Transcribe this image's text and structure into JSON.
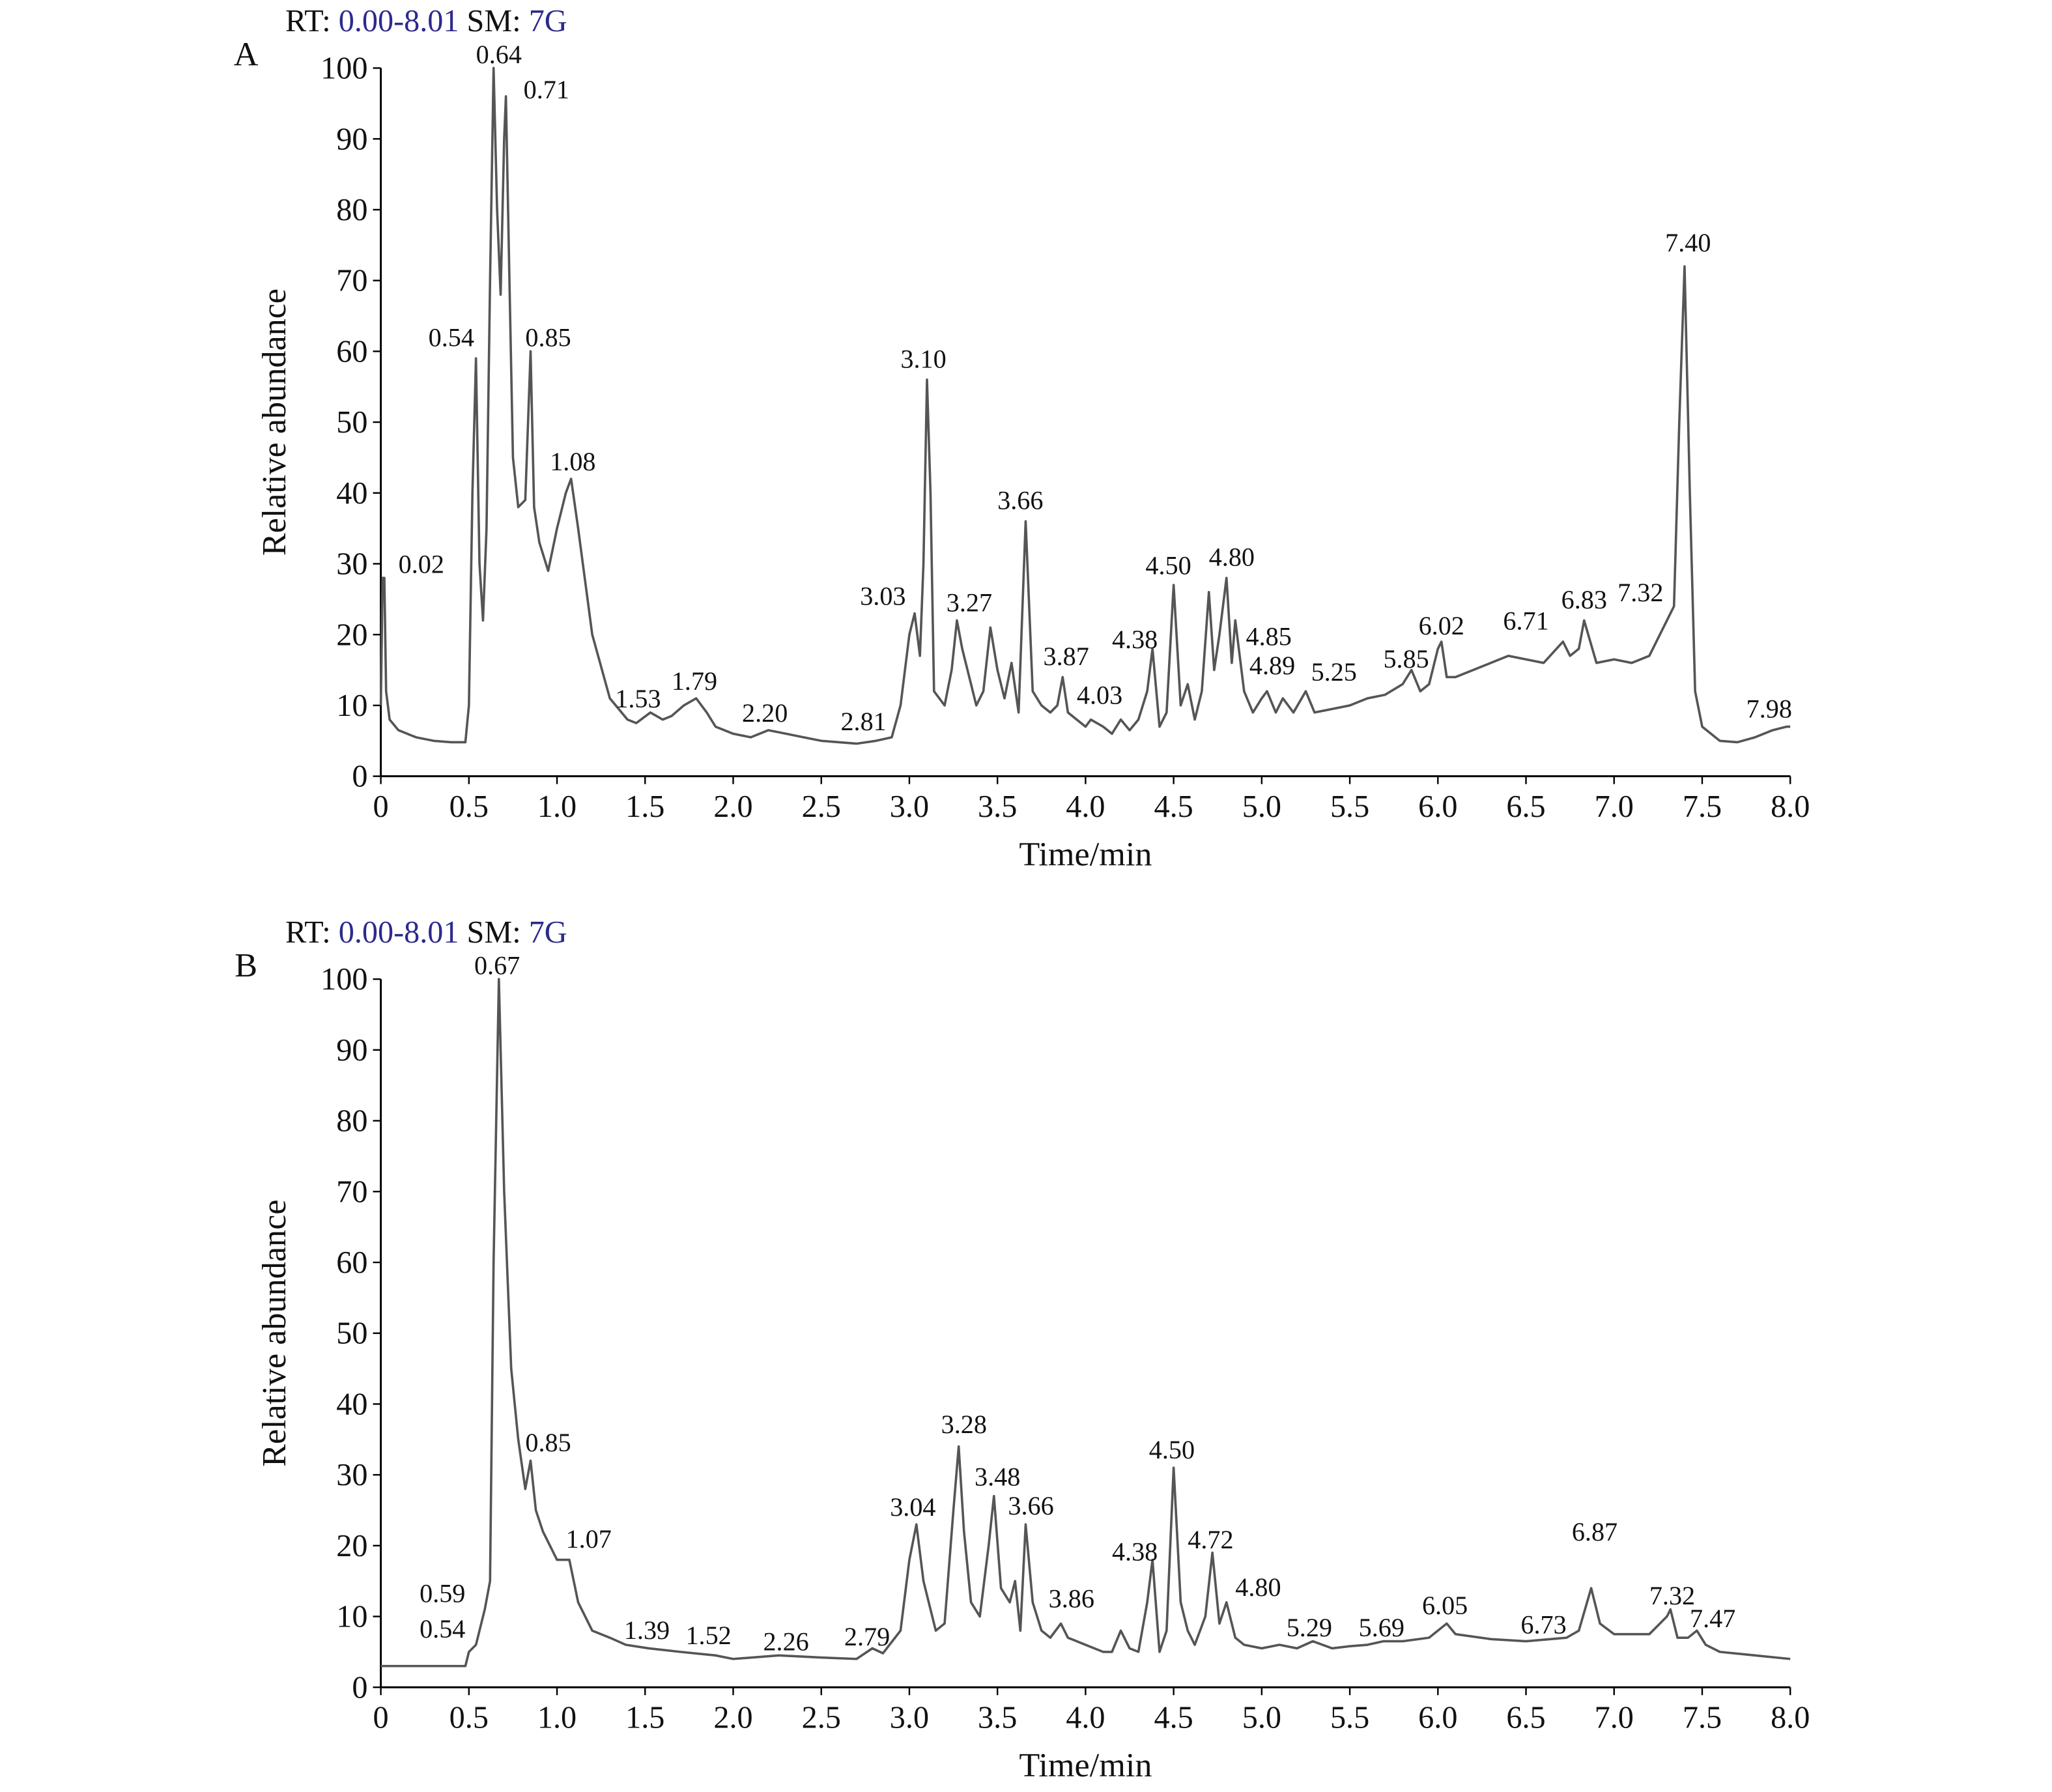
{
  "chart_data": [
    {
      "type": "line",
      "panel": "A",
      "header": {
        "rt_label": "RT:",
        "rt_range": "0.00-8.01",
        "sm_label": "SM:",
        "sm_value": "7G"
      },
      "xlabel": "Time/min",
      "ylabel": "Relative abundance",
      "color": "#555555",
      "xlim": [
        0,
        8
      ],
      "ylim": [
        0,
        100
      ],
      "xticks": [
        0,
        0.5,
        {
          "value": 1,
          "label": "1.0"
        },
        1.5,
        {
          "value": 2,
          "label": "2.0"
        },
        2.5,
        {
          "value": 3,
          "label": "3.0"
        },
        3.5,
        {
          "value": 4,
          "label": "4.0"
        },
        4.5,
        {
          "value": 5,
          "label": "5.0"
        },
        5.5,
        {
          "value": 6,
          "label": "6.0"
        },
        6.5,
        {
          "value": 7,
          "label": "7.0"
        },
        7.5,
        {
          "value": 8,
          "label": "8.0"
        }
      ],
      "yticks": [
        0,
        10,
        20,
        30,
        40,
        50,
        60,
        70,
        80,
        90,
        100
      ],
      "x": [
        0,
        0.01,
        0.02,
        0.03,
        0.05,
        0.1,
        0.2,
        0.3,
        0.4,
        0.48,
        0.5,
        0.52,
        0.54,
        0.56,
        0.58,
        0.6,
        0.62,
        0.64,
        0.66,
        0.68,
        0.7,
        0.71,
        0.73,
        0.75,
        0.78,
        0.82,
        0.85,
        0.87,
        0.9,
        0.95,
        1.0,
        1.05,
        1.08,
        1.12,
        1.2,
        1.3,
        1.4,
        1.45,
        1.53,
        1.6,
        1.65,
        1.72,
        1.79,
        1.85,
        1.9,
        2.0,
        2.1,
        2.2,
        2.3,
        2.4,
        2.5,
        2.6,
        2.7,
        2.81,
        2.9,
        2.95,
        3.0,
        3.03,
        3.06,
        3.08,
        3.1,
        3.12,
        3.14,
        3.2,
        3.24,
        3.27,
        3.3,
        3.34,
        3.38,
        3.42,
        3.46,
        3.5,
        3.54,
        3.58,
        3.62,
        3.66,
        3.7,
        3.75,
        3.8,
        3.84,
        3.87,
        3.9,
        3.95,
        4.0,
        4.03,
        4.1,
        4.15,
        4.2,
        4.25,
        4.3,
        4.35,
        4.38,
        4.42,
        4.46,
        4.5,
        4.54,
        4.58,
        4.62,
        4.66,
        4.7,
        4.73,
        4.76,
        4.8,
        4.83,
        4.85,
        4.9,
        4.95,
        5.0,
        5.03,
        5.08,
        5.12,
        5.18,
        5.25,
        5.3,
        5.4,
        5.5,
        5.6,
        5.7,
        5.8,
        5.85,
        5.9,
        5.95,
        6.0,
        6.02,
        6.05,
        6.1,
        6.2,
        6.3,
        6.4,
        6.5,
        6.6,
        6.71,
        6.75,
        6.8,
        6.83,
        6.9,
        7.0,
        7.1,
        7.2,
        7.3,
        7.34,
        7.37,
        7.4,
        7.43,
        7.46,
        7.5,
        7.6,
        7.7,
        7.8,
        7.9,
        7.98,
        8.0
      ],
      "values": [
        10,
        28,
        28,
        12,
        8,
        6.5,
        5.5,
        5,
        4.8,
        4.8,
        10,
        40,
        59,
        30,
        22,
        35,
        70,
        100,
        80,
        68,
        90,
        96,
        70,
        45,
        38,
        39,
        60,
        38,
        33,
        29,
        35,
        40,
        42,
        35,
        20,
        11,
        8,
        7.5,
        9,
        8,
        8.5,
        10,
        11,
        9,
        7,
        6,
        5.5,
        6.5,
        6,
        5.5,
        5,
        4.8,
        4.6,
        5,
        5.5,
        10,
        20,
        23,
        17,
        30,
        56,
        40,
        12,
        10,
        15,
        22,
        18,
        14,
        10,
        12,
        21,
        15,
        11,
        16,
        9,
        36,
        12,
        10,
        9,
        10,
        14,
        9,
        8,
        7,
        8,
        7,
        6,
        8,
        6.5,
        8,
        12,
        18,
        7,
        9,
        27,
        10,
        13,
        8,
        12,
        26,
        15,
        20,
        28,
        16,
        22,
        12,
        9,
        11,
        12,
        9,
        11,
        9,
        12,
        9,
        9.5,
        10,
        11,
        11.5,
        13,
        15,
        12,
        13,
        18,
        19,
        14,
        14,
        15,
        16,
        17,
        16.5,
        16,
        19,
        17,
        18,
        22,
        16,
        16.5,
        16,
        17,
        22,
        24,
        50,
        72,
        40,
        12,
        7,
        5,
        4.8,
        5.5,
        6.5,
        7,
        7
      ],
      "annotations": [
        {
          "text": "0.64",
          "x": 0.67,
          "y": 102
        },
        {
          "text": "0.71",
          "x": 0.94,
          "y": 97
        },
        {
          "text": "0.54",
          "x": 0.4,
          "y": 62
        },
        {
          "text": "0.85",
          "x": 0.95,
          "y": 62
        },
        {
          "text": "1.08",
          "x": 1.09,
          "y": 44.5
        },
        {
          "text": "0.02",
          "x": 0.23,
          "y": 30
        },
        {
          "text": "1.53",
          "x": 1.46,
          "y": 11
        },
        {
          "text": "1.79",
          "x": 1.78,
          "y": 13.5
        },
        {
          "text": "2.20",
          "x": 2.18,
          "y": 9
        },
        {
          "text": "2.81",
          "x": 2.74,
          "y": 7.8
        },
        {
          "text": "3.10",
          "x": 3.08,
          "y": 59
        },
        {
          "text": "3.66",
          "x": 3.63,
          "y": 39
        },
        {
          "text": "3.03",
          "x": 2.85,
          "y": 25.5
        },
        {
          "text": "3.27",
          "x": 3.34,
          "y": 24.6
        },
        {
          "text": "3.87",
          "x": 3.89,
          "y": 17
        },
        {
          "text": "4.03",
          "x": 4.08,
          "y": 11.5
        },
        {
          "text": "4.38",
          "x": 4.28,
          "y": 19.4
        },
        {
          "text": "4.50",
          "x": 4.47,
          "y": 29.8
        },
        {
          "text": "4.80",
          "x": 4.83,
          "y": 31
        },
        {
          "text": "4.85",
          "x": 5.04,
          "y": 19.8
        },
        {
          "text": "4.89",
          "x": 5.06,
          "y": 15.7
        },
        {
          "text": "5.25",
          "x": 5.41,
          "y": 14.8
        },
        {
          "text": "5.85",
          "x": 5.82,
          "y": 16.6
        },
        {
          "text": "6.02",
          "x": 6.02,
          "y": 21.3
        },
        {
          "text": "6.71",
          "x": 6.5,
          "y": 22
        },
        {
          "text": "6.83",
          "x": 6.83,
          "y": 25
        },
        {
          "text": "7.32",
          "x": 7.15,
          "y": 26
        },
        {
          "text": "7.40",
          "x": 7.42,
          "y": 75.4
        },
        {
          "text": "7.98",
          "x": 7.88,
          "y": 9.6
        }
      ]
    },
    {
      "type": "line",
      "panel": "B",
      "header": {
        "rt_label": "RT:",
        "rt_range": "0.00-8.01",
        "sm_label": "SM:",
        "sm_value": "7G"
      },
      "xlabel": "Time/min",
      "ylabel": "Relative abundance",
      "color": "#555555",
      "xlim": [
        0,
        8
      ],
      "ylim": [
        0,
        100
      ],
      "xticks": [
        0,
        0.5,
        {
          "value": 1,
          "label": "1.0"
        },
        1.5,
        {
          "value": 2,
          "label": "2.0"
        },
        2.5,
        {
          "value": 3,
          "label": "3.0"
        },
        3.5,
        {
          "value": 4,
          "label": "4.0"
        },
        4.5,
        {
          "value": 5,
          "label": "5.0"
        },
        5.5,
        {
          "value": 6,
          "label": "6.0"
        },
        6.5,
        {
          "value": 7,
          "label": "7.0"
        },
        7.5,
        {
          "value": 8,
          "label": "8.0"
        }
      ],
      "yticks": [
        0,
        10,
        20,
        30,
        40,
        50,
        60,
        70,
        80,
        90,
        100
      ],
      "x": [
        0,
        0.1,
        0.2,
        0.3,
        0.4,
        0.48,
        0.5,
        0.54,
        0.59,
        0.62,
        0.64,
        0.67,
        0.7,
        0.74,
        0.78,
        0.82,
        0.85,
        0.88,
        0.92,
        0.96,
        1.0,
        1.07,
        1.12,
        1.2,
        1.3,
        1.39,
        1.52,
        1.7,
        1.9,
        2.0,
        2.26,
        2.5,
        2.7,
        2.79,
        2.85,
        2.95,
        3.0,
        3.04,
        3.08,
        3.15,
        3.2,
        3.25,
        3.28,
        3.31,
        3.35,
        3.4,
        3.45,
        3.48,
        3.52,
        3.57,
        3.6,
        3.63,
        3.66,
        3.7,
        3.75,
        3.8,
        3.86,
        3.9,
        4.0,
        4.1,
        4.15,
        4.2,
        4.25,
        4.3,
        4.35,
        4.38,
        4.42,
        4.46,
        4.5,
        4.54,
        4.58,
        4.62,
        4.68,
        4.72,
        4.76,
        4.8,
        4.85,
        4.9,
        5.0,
        5.1,
        5.2,
        5.29,
        5.4,
        5.5,
        5.6,
        5.69,
        5.8,
        5.95,
        6.05,
        6.1,
        6.3,
        6.5,
        6.73,
        6.8,
        6.87,
        6.92,
        7.0,
        7.2,
        7.3,
        7.32,
        7.36,
        7.42,
        7.47,
        7.52,
        7.6,
        7.8,
        8.0
      ],
      "values": [
        3,
        3,
        3,
        3,
        3,
        3,
        5,
        6,
        11,
        15,
        60,
        100,
        70,
        45,
        35,
        28,
        32,
        25,
        22,
        20,
        18,
        18,
        12,
        8,
        7,
        6,
        5.5,
        5,
        4.5,
        4,
        4.5,
        4.2,
        4,
        5.5,
        4.8,
        8,
        18,
        23,
        15,
        8,
        9,
        25,
        34,
        22,
        12,
        10,
        20,
        27,
        14,
        12,
        15,
        8,
        23,
        12,
        8,
        7,
        9,
        7,
        6,
        5,
        5,
        8,
        5.5,
        5,
        12,
        18,
        5,
        8,
        31,
        12,
        8,
        6,
        10,
        19,
        9,
        12,
        7,
        6,
        5.5,
        6,
        5.5,
        6.5,
        5.5,
        5.8,
        6,
        6.5,
        6.5,
        7,
        9,
        7.5,
        6.8,
        6.5,
        7,
        8,
        14,
        9,
        7.5,
        7.5,
        10,
        11,
        7,
        7,
        8,
        6,
        5,
        4.5,
        4
      ],
      "annotations": [
        {
          "text": "0.67",
          "x": 0.66,
          "y": 102
        },
        {
          "text": "0.85",
          "x": 0.95,
          "y": 34.6
        },
        {
          "text": "1.07",
          "x": 1.18,
          "y": 21
        },
        {
          "text": "0.59",
          "x": 0.35,
          "y": 13.3
        },
        {
          "text": "0.54",
          "x": 0.35,
          "y": 8.3
        },
        {
          "text": "1.39",
          "x": 1.51,
          "y": 8.1
        },
        {
          "text": "1.52",
          "x": 1.86,
          "y": 7.4
        },
        {
          "text": "2.26",
          "x": 2.3,
          "y": 6.5
        },
        {
          "text": "2.79",
          "x": 2.76,
          "y": 7.2
        },
        {
          "text": "3.04",
          "x": 3.02,
          "y": 25.5
        },
        {
          "text": "3.28",
          "x": 3.31,
          "y": 37.2
        },
        {
          "text": "3.48",
          "x": 3.5,
          "y": 29.8
        },
        {
          "text": "3.66",
          "x": 3.69,
          "y": 25.7
        },
        {
          "text": "3.86",
          "x": 3.92,
          "y": 12.6
        },
        {
          "text": "4.38",
          "x": 4.28,
          "y": 19.2
        },
        {
          "text": "4.50",
          "x": 4.49,
          "y": 33.6
        },
        {
          "text": "4.72",
          "x": 4.71,
          "y": 20.9
        },
        {
          "text": "4.80",
          "x": 4.98,
          "y": 14.2
        },
        {
          "text": "5.29",
          "x": 5.27,
          "y": 8.5
        },
        {
          "text": "5.69",
          "x": 5.68,
          "y": 8.5
        },
        {
          "text": "6.05",
          "x": 6.04,
          "y": 11.6
        },
        {
          "text": "6.73",
          "x": 6.6,
          "y": 8.9
        },
        {
          "text": "6.87",
          "x": 6.89,
          "y": 22
        },
        {
          "text": "7.32",
          "x": 7.33,
          "y": 13
        },
        {
          "text": "7.47",
          "x": 7.56,
          "y": 9.8
        }
      ]
    }
  ]
}
